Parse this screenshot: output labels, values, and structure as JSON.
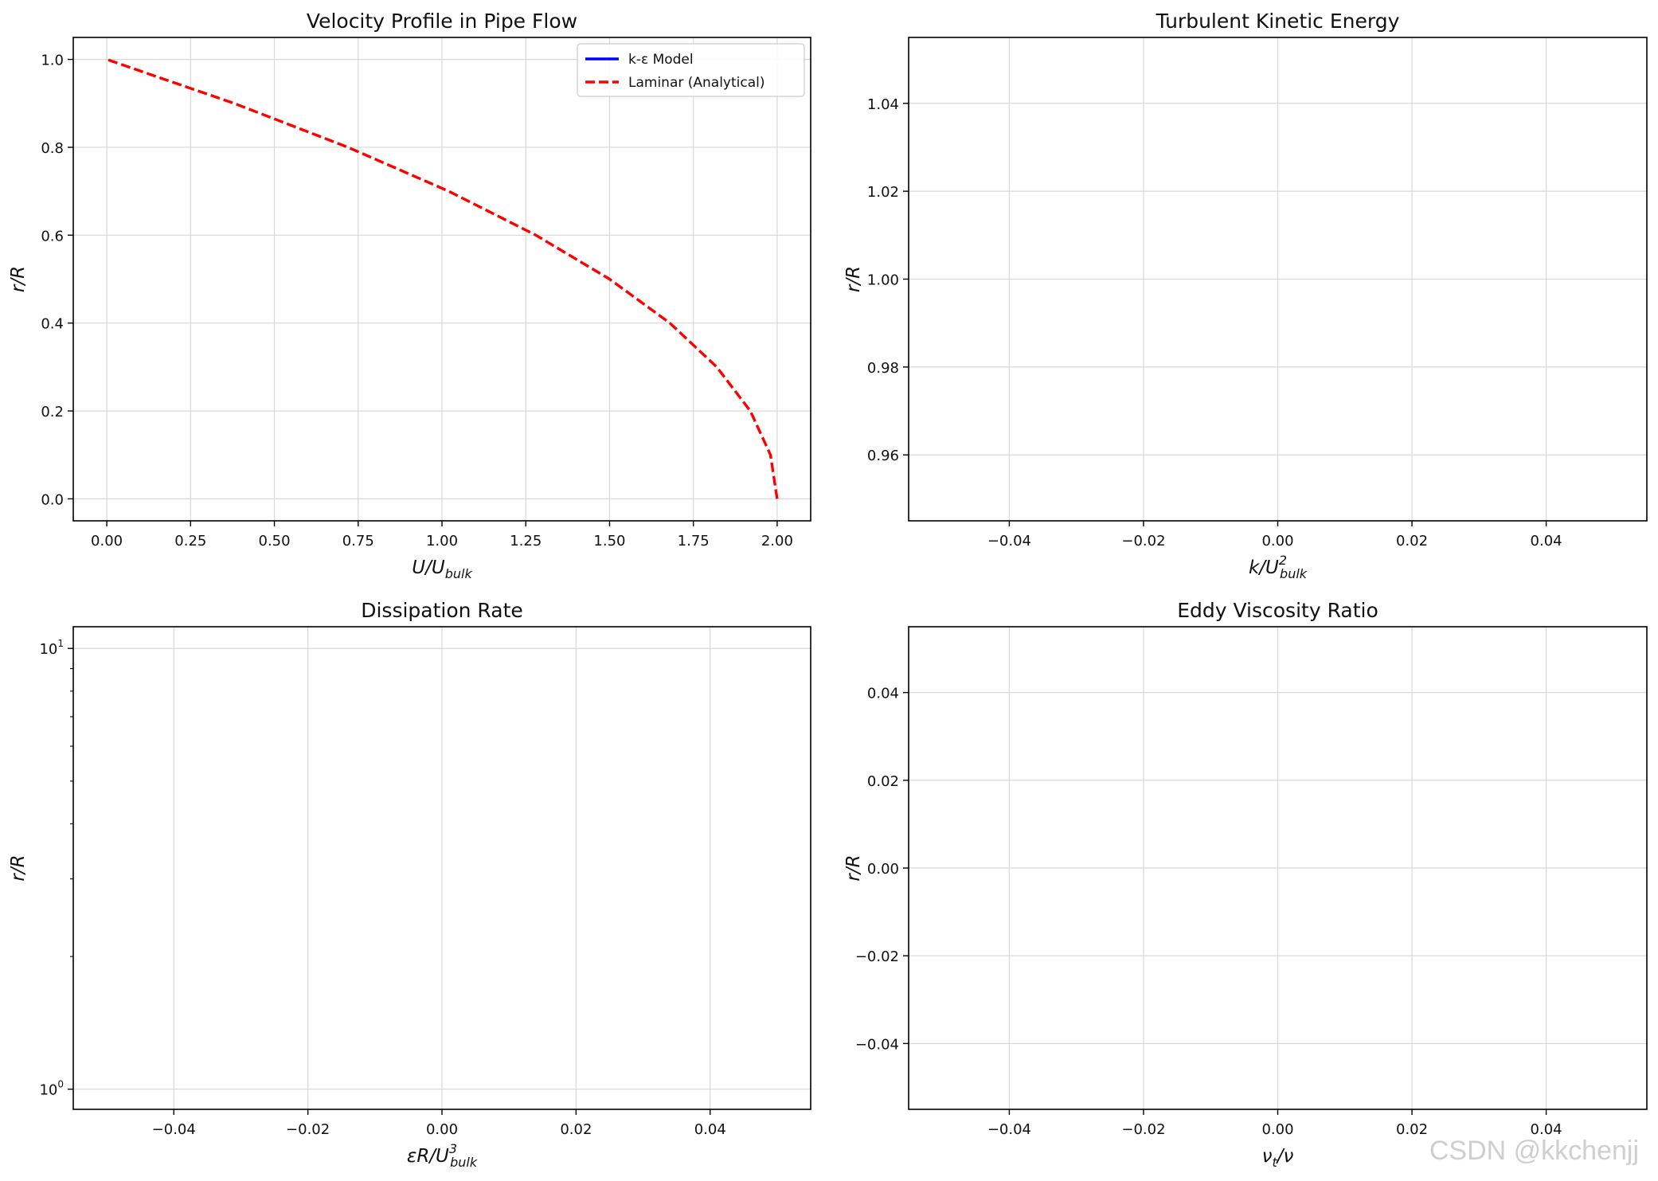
{
  "chart_data": [
    {
      "type": "line",
      "title": "Velocity Profile in Pipe Flow",
      "xlabel_base": "U/U",
      "xlabel_sub": "bulk",
      "xlabel_sup": "",
      "ylabel": "r/R",
      "xlim": [
        -0.1,
        2.1
      ],
      "ylim": [
        -0.05,
        1.05
      ],
      "xticks": [
        0,
        0.25,
        0.5,
        0.75,
        1.0,
        1.25,
        1.5,
        1.75,
        2.0
      ],
      "xtick_labels": [
        "0.00",
        "0.25",
        "0.50",
        "0.75",
        "1.00",
        "1.25",
        "1.50",
        "1.75",
        "2.00"
      ],
      "yticks": [
        0,
        0.2,
        0.4,
        0.6,
        0.8,
        1.0
      ],
      "ytick_labels": [
        "0.0",
        "0.2",
        "0.4",
        "0.6",
        "0.8",
        "1.0"
      ],
      "grid": true,
      "legend": "top-right",
      "series": [
        {
          "name": "k-ε Model",
          "color": "#0000ff",
          "style": "solid",
          "x": [],
          "y": []
        },
        {
          "name": "Laminar (Analytical)",
          "color": "#ff0000",
          "style": "dashed",
          "x": [
            2.0,
            1.98,
            1.92,
            1.82,
            1.68,
            1.5,
            1.28,
            1.02,
            0.72,
            0.38,
            0.0
          ],
          "y": [
            0.0,
            0.1,
            0.2,
            0.3,
            0.4,
            0.5,
            0.6,
            0.7,
            0.8,
            0.9,
            1.0
          ]
        }
      ]
    },
    {
      "type": "line",
      "title": "Turbulent Kinetic Energy",
      "xlabel_base": "k/U",
      "xlabel_sub": "bulk",
      "xlabel_sup": "2",
      "ylabel": "r/R",
      "xlim": [
        -0.055,
        0.055
      ],
      "ylim": [
        0.945,
        1.055
      ],
      "xticks": [
        -0.04,
        -0.02,
        0,
        0.02,
        0.04
      ],
      "xtick_labels": [
        "−0.04",
        "−0.02",
        "0.00",
        "0.02",
        "0.04"
      ],
      "yticks": [
        0.96,
        0.98,
        1.0,
        1.02,
        1.04
      ],
      "ytick_labels": [
        "0.96",
        "0.98",
        "1.00",
        "1.02",
        "1.04"
      ],
      "grid": true,
      "series": []
    },
    {
      "type": "line",
      "title": "Dissipation Rate",
      "xlabel_base": "εR/U",
      "xlabel_sub": "bulk",
      "xlabel_sup": "3",
      "ylabel": "r/R",
      "xscale": "linear",
      "yscale": "log",
      "xlim": [
        -0.055,
        0.055
      ],
      "ylim": [
        0.9,
        11.2
      ],
      "xticks": [
        -0.04,
        -0.02,
        0,
        0.02,
        0.04
      ],
      "xtick_labels": [
        "−0.04",
        "−0.02",
        "0.00",
        "0.02",
        "0.04"
      ],
      "yticks": [
        1,
        10
      ],
      "ytick_labels_base": [
        "10",
        "10"
      ],
      "ytick_labels_exp": [
        "0",
        "1"
      ],
      "yminor": [
        2,
        3,
        4,
        5,
        6,
        7,
        8,
        9
      ],
      "grid": true,
      "series": []
    },
    {
      "type": "line",
      "title": "Eddy Viscosity Ratio",
      "xlabel_base": "ν",
      "xlabel_sub": "t",
      "xlabel_tail": "/ν",
      "ylabel": "r/R",
      "xlim": [
        -0.055,
        0.055
      ],
      "ylim": [
        -0.055,
        0.055
      ],
      "xticks": [
        -0.04,
        -0.02,
        0,
        0.02,
        0.04
      ],
      "xtick_labels": [
        "−0.04",
        "−0.02",
        "0.00",
        "0.02",
        "0.04"
      ],
      "yticks": [
        -0.04,
        -0.02,
        0,
        0.02,
        0.04
      ],
      "ytick_labels": [
        "−0.04",
        "−0.02",
        "0.00",
        "0.02",
        "0.04"
      ],
      "grid": true,
      "series": []
    }
  ],
  "watermark": "CSDN @kkchenjj"
}
